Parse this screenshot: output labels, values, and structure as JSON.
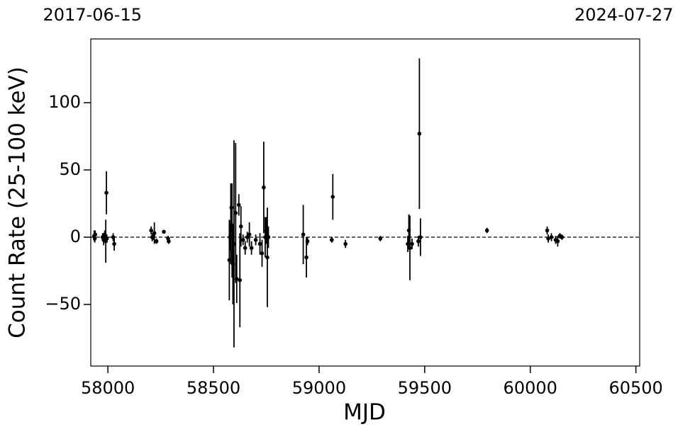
{
  "chart_data": {
    "type": "scatter",
    "xlabel": "MJD",
    "ylabel": "Count Rate (25-100 keV)",
    "xlim": [
      57919,
      60518
    ],
    "ylim": [
      -95.8,
      147.4
    ],
    "xticks": [
      58000,
      58500,
      59000,
      59500,
      60000,
      60500
    ],
    "yticks": [
      {
        "value": -50,
        "label": "−50"
      },
      0,
      50,
      100
    ],
    "x2ticks": [
      {
        "value": 57919,
        "label": "2017-06-15"
      },
      {
        "value": 60518,
        "label": "2024-07-27"
      }
    ],
    "hline": 0,
    "color": "#000000",
    "x": [
      57935,
      57938,
      57940,
      57975,
      57980,
      57985,
      57990,
      57993,
      57995,
      58025,
      58030,
      58205,
      58210,
      58215,
      58220,
      58230,
      58265,
      58285,
      58288,
      58575,
      58578,
      58582,
      58585,
      58588,
      58592,
      58597,
      58605,
      58610,
      58620,
      58625,
      58630,
      58640,
      58650,
      58660,
      58670,
      58680,
      58700,
      58720,
      58730,
      58738,
      58745,
      58750,
      58755,
      58760,
      58925,
      58940,
      58945,
      59060,
      59065,
      59125,
      59290,
      59420,
      59425,
      59430,
      59440,
      59470,
      59475,
      59480,
      59795,
      60080,
      60085,
      60100,
      60120,
      60130,
      60140,
      60150
    ],
    "values": [
      1,
      -1,
      2,
      0,
      -2,
      2,
      -3,
      33,
      -1,
      0,
      -5,
      5,
      0,
      1,
      3,
      -3,
      4,
      -1,
      -3,
      -17,
      0,
      10,
      22,
      5,
      -20,
      -5,
      18,
      -31,
      24,
      -32,
      8,
      -2,
      -8,
      0,
      2,
      -8,
      -2,
      -5,
      -12,
      37,
      0,
      5,
      -15,
      0,
      2,
      -15,
      -3,
      -2,
      30,
      -5,
      -1,
      -5,
      5,
      -8,
      -5,
      -3,
      77,
      0,
      5,
      5,
      -1,
      0,
      -2,
      -3,
      1,
      0
    ],
    "errors": [
      4,
      3,
      3,
      3,
      4,
      3,
      16,
      16,
      3,
      3,
      5,
      3,
      3,
      3,
      8,
      2,
      1,
      2,
      2,
      30,
      10,
      30,
      18,
      35,
      30,
      77,
      52,
      18,
      8,
      35,
      15,
      4,
      5,
      4,
      9,
      5,
      4,
      8,
      10,
      34,
      15,
      10,
      37,
      8,
      22,
      15,
      3,
      2,
      17,
      3,
      2,
      6,
      12,
      24,
      4,
      4,
      56,
      14,
      2,
      3,
      3,
      3,
      3,
      4,
      2,
      2
    ]
  }
}
